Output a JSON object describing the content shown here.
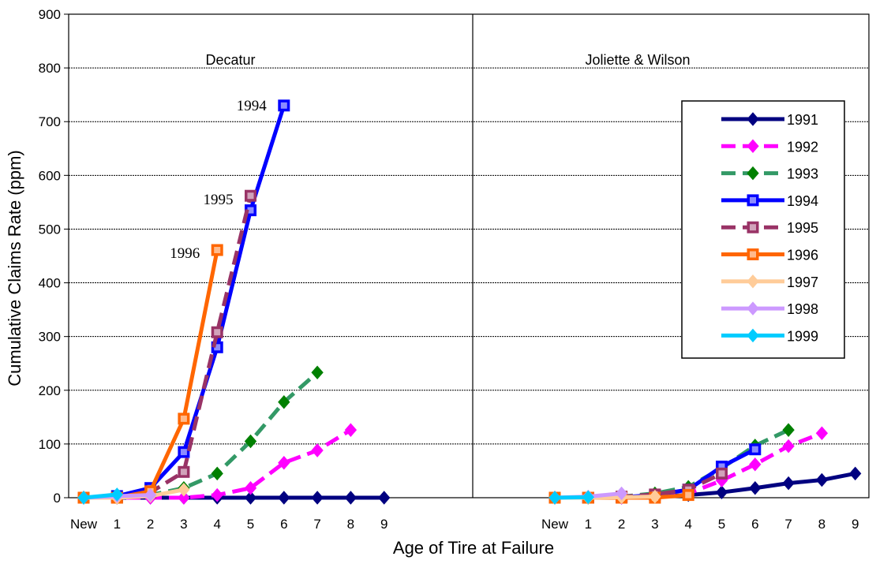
{
  "chart_data": {
    "type": "line",
    "ylabel": "Cumulative Claims Rate (ppm)",
    "xlabel": "Age of Tire at Failure",
    "ylim": [
      0,
      900
    ],
    "yticks": [
      0,
      100,
      200,
      300,
      400,
      500,
      600,
      700,
      800,
      900
    ],
    "categories": [
      "New",
      "1",
      "2",
      "3",
      "4",
      "5",
      "6",
      "7",
      "8",
      "9"
    ],
    "grid": true,
    "legend_position": "top-right",
    "series_style": [
      {
        "name": "1991",
        "color": "#000080",
        "dash": "solid",
        "marker": "diamond"
      },
      {
        "name": "1992",
        "color": "#ff00ff",
        "dash": "dashed",
        "marker": "diamond"
      },
      {
        "name": "1993",
        "color": "#339966",
        "dash": "dashed",
        "marker": "diamond-green"
      },
      {
        "name": "1994",
        "color": "#0000ff",
        "dash": "solid",
        "marker": "square"
      },
      {
        "name": "1995",
        "color": "#993366",
        "dash": "dashed",
        "marker": "square"
      },
      {
        "name": "1996",
        "color": "#ff6600",
        "dash": "solid",
        "marker": "square"
      },
      {
        "name": "1997",
        "color": "#ffcc99",
        "dash": "solid",
        "marker": "diamond"
      },
      {
        "name": "1998",
        "color": "#cc99ff",
        "dash": "solid",
        "marker": "diamond"
      },
      {
        "name": "1999",
        "color": "#00ccff",
        "dash": "solid",
        "marker": "diamond"
      }
    ],
    "panels": [
      {
        "title": "Decatur",
        "annotations": [
          {
            "text": "1994",
            "x": 6,
            "y": 730
          },
          {
            "text": "1995",
            "x": 5,
            "y": 555
          },
          {
            "text": "1996",
            "x": 4,
            "y": 455
          }
        ],
        "series": [
          {
            "name": "1991",
            "values": [
              0,
              0,
              0,
              0,
              0,
              0,
              0,
              0,
              0,
              0
            ]
          },
          {
            "name": "1992",
            "values": [
              0,
              0,
              0,
              0,
              5,
              18,
              65,
              88,
              126,
              null
            ]
          },
          {
            "name": "1993",
            "values": [
              0,
              0,
              5,
              18,
              45,
              105,
              178,
              233,
              null,
              null
            ]
          },
          {
            "name": "1994",
            "values": [
              0,
              3,
              18,
              85,
              280,
              535,
              730,
              null,
              null,
              null
            ]
          },
          {
            "name": "1995",
            "values": [
              0,
              0,
              10,
              48,
              308,
              562,
              null,
              null,
              null,
              null
            ]
          },
          {
            "name": "1996",
            "values": [
              0,
              0,
              12,
              147,
              461,
              null,
              null,
              null,
              null,
              null
            ]
          },
          {
            "name": "1997",
            "values": [
              0,
              0,
              3,
              15,
              null,
              null,
              null,
              null,
              null,
              null
            ]
          },
          {
            "name": "1998",
            "values": [
              0,
              3,
              5,
              null,
              null,
              null,
              null,
              null,
              null,
              null
            ]
          },
          {
            "name": "1999",
            "values": [
              0,
              6,
              null,
              null,
              null,
              null,
              null,
              null,
              null,
              null
            ]
          }
        ]
      },
      {
        "title": "Joliette & Wilson",
        "annotations": [],
        "series": [
          {
            "name": "1991",
            "values": [
              0,
              0,
              0,
              2,
              5,
              10,
              18,
              27,
              33,
              45
            ]
          },
          {
            "name": "1992",
            "values": [
              0,
              0,
              0,
              2,
              8,
              32,
              62,
              96,
              120,
              null
            ]
          },
          {
            "name": "1993",
            "values": [
              0,
              0,
              2,
              8,
              20,
              55,
              97,
              126,
              null,
              null
            ]
          },
          {
            "name": "1994",
            "values": [
              0,
              0,
              1,
              5,
              15,
              58,
              90,
              null,
              null,
              null
            ]
          },
          {
            "name": "1995",
            "values": [
              0,
              0,
              2,
              6,
              15,
              45,
              null,
              null,
              null,
              null
            ]
          },
          {
            "name": "1996",
            "values": [
              0,
              0,
              0,
              0,
              5,
              null,
              null,
              null,
              null,
              null
            ]
          },
          {
            "name": "1997",
            "values": [
              0,
              0,
              1,
              2,
              null,
              null,
              null,
              null,
              null,
              null
            ]
          },
          {
            "name": "1998",
            "values": [
              0,
              2,
              8,
              null,
              null,
              null,
              null,
              null,
              null,
              null
            ]
          },
          {
            "name": "1999",
            "values": [
              0,
              1,
              null,
              null,
              null,
              null,
              null,
              null,
              null,
              null
            ]
          }
        ]
      }
    ]
  }
}
